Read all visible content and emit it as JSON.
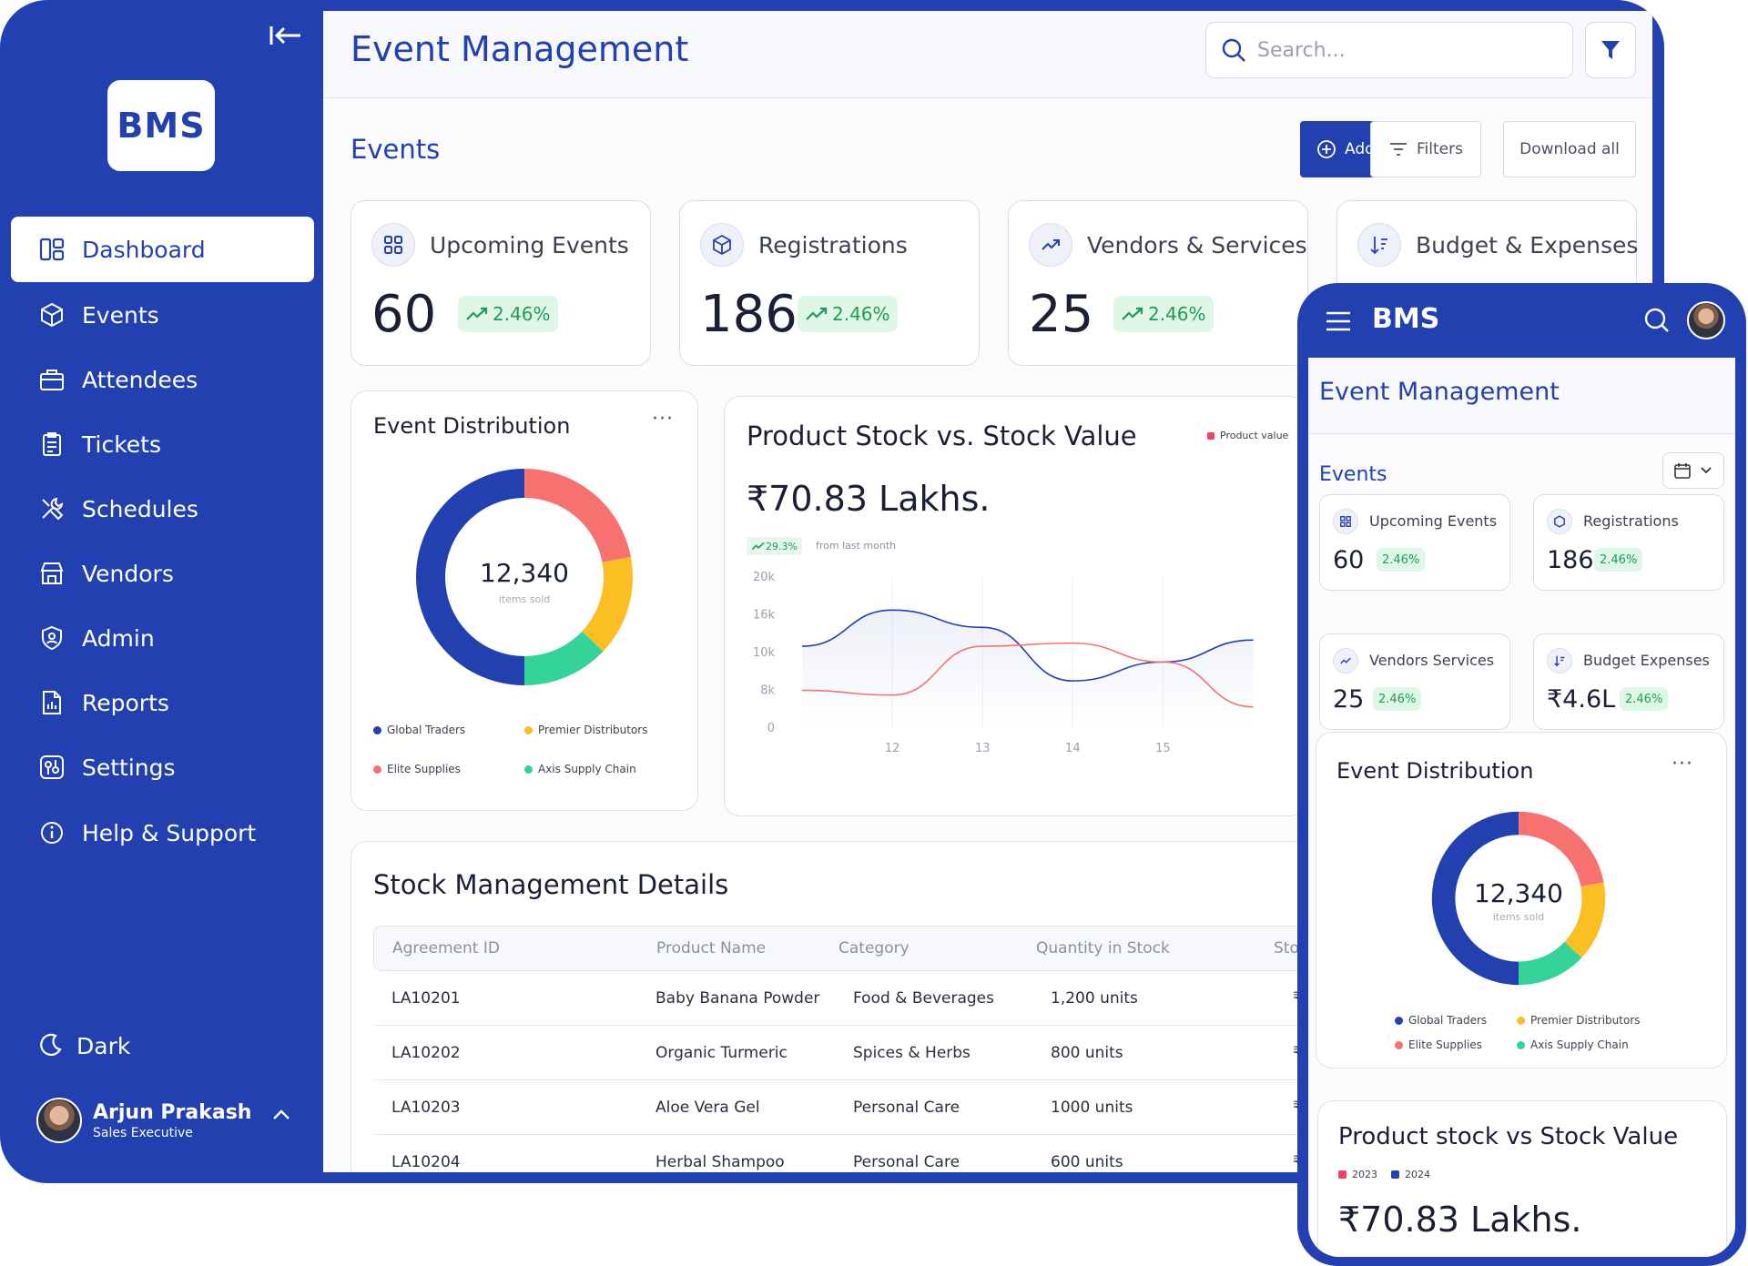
{
  "brand": "BMS",
  "colors": {
    "primary": "#2340b1",
    "green": "#22c55e",
    "red": "#f87171",
    "yellow": "#fbbf24",
    "accent_badge": "#1f9d55"
  },
  "sidebar": {
    "items": [
      {
        "label": "Dashboard",
        "icon": "dashboard-icon",
        "active": true
      },
      {
        "label": "Events",
        "icon": "cube-icon"
      },
      {
        "label": "Attendees",
        "icon": "briefcase-icon"
      },
      {
        "label": "Tickets",
        "icon": "clipboard-icon"
      },
      {
        "label": "Schedules",
        "icon": "tools-icon"
      },
      {
        "label": "Vendors",
        "icon": "store-icon"
      },
      {
        "label": "Admin",
        "icon": "shield-user-icon"
      },
      {
        "label": "Reports",
        "icon": "report-icon"
      },
      {
        "label": "Settings",
        "icon": "settings-icon"
      },
      {
        "label": "Help & Support",
        "icon": "info-icon"
      }
    ],
    "dark_label": "Dark",
    "user": {
      "name": "Arjun Prakash",
      "role": "Sales Executive"
    }
  },
  "header": {
    "title": "Event Management",
    "search_placeholder": "Search..."
  },
  "events_section": {
    "title": "Events",
    "add_button": "Add Event",
    "filters_button": "Filters",
    "download_button": "Download all"
  },
  "stats": [
    {
      "label": "Upcoming Events",
      "value": "60",
      "change": "2.46%",
      "icon": "grid-icon"
    },
    {
      "label": "Registrations",
      "value": "186",
      "change": "2.46%",
      "icon": "cube-icon"
    },
    {
      "label": "Vendors & Services",
      "value": "25",
      "change": "2.46%",
      "icon": "trend-up-icon"
    },
    {
      "label": "Budget & Expenses",
      "value": "",
      "change": "",
      "icon": "sort-down-icon"
    }
  ],
  "event_distribution": {
    "title": "Event Distribution",
    "center_value": "12,340",
    "center_label": "items sold",
    "legend": [
      "Global Traders",
      "Premier Distributors",
      "Elite Supplies",
      "Axis Supply Chain"
    ]
  },
  "chart_data": [
    {
      "type": "pie",
      "title": "Event Distribution",
      "labels": [
        "Global Traders",
        "Elite Supplies",
        "Premier Distributors",
        "Axis Supply Chain"
      ],
      "values": [
        50,
        22,
        15,
        13
      ],
      "colors": [
        "#2340b1",
        "#f87171",
        "#fbbf24",
        "#34d399"
      ],
      "donut": true
    },
    {
      "type": "line",
      "title": "Product Stock vs. Stock Value",
      "x": [
        11,
        12,
        13,
        14,
        15,
        16
      ],
      "yticks": [
        "20k",
        "16k",
        "10k",
        "8k",
        "0"
      ],
      "xticks": [
        "12",
        "13",
        "14",
        "15"
      ],
      "series": [
        {
          "name": "",
          "color": "#2340b1",
          "values": [
            11000,
            16500,
            14000,
            8500,
            9500,
            12000
          ]
        },
        {
          "name": "Product value",
          "color": "#f87171",
          "values": [
            8000,
            7000,
            11000,
            11500,
            9500,
            4500
          ]
        }
      ],
      "legend_position": "top-right"
    }
  ],
  "stock_chart": {
    "title": "Product Stock vs. Stock Value",
    "legend": "Product value",
    "total": "₹70.83 Lakhs.",
    "change": "29.3%",
    "change_note": "from last month",
    "yticks": [
      "20k",
      "16k",
      "10k",
      "8k",
      "0"
    ],
    "xticks": [
      "12",
      "13",
      "14",
      "15"
    ]
  },
  "stock_table": {
    "title": "Stock Management Details",
    "columns": [
      "Agreement ID",
      "Product Name",
      "Category",
      "Quantity in Stock",
      "Sto"
    ],
    "rows": [
      [
        "LA10201",
        "Baby Banana Powder",
        "Food & Beverages",
        "1,200 units"
      ],
      [
        "LA10202",
        "Organic Turmeric",
        "Spices & Herbs",
        "800 units"
      ],
      [
        "LA10203",
        "Aloe Vera Gel",
        "Personal Care",
        "1000 units"
      ],
      [
        "LA10204",
        "Herbal Shampoo",
        "Personal Care",
        "600 units"
      ]
    ],
    "currency_cell": "₹"
  },
  "mobile": {
    "brand": "BMS",
    "title": "Event Management",
    "events_label": "Events",
    "stats": [
      {
        "label": "Upcoming Events",
        "value": "60",
        "change": "2.46%"
      },
      {
        "label": "Registrations",
        "value": "186",
        "change": "2.46%"
      },
      {
        "label": "Vendors Services",
        "value": "25",
        "change": "2.46%"
      },
      {
        "label": "Budget Expenses",
        "value": "₹4.6L",
        "change": "2.46%"
      }
    ],
    "distribution_title": "Event Distribution",
    "center_value": "12,340",
    "center_label": "items sold",
    "legend": [
      "Global Traders",
      "Premier Distributors",
      "Elite Supplies",
      "Axis Supply Chain"
    ],
    "stock_title": "Product stock vs Stock Value",
    "stock_legend": [
      "2023",
      "2024"
    ],
    "stock_total": "₹70.83 Lakhs."
  }
}
